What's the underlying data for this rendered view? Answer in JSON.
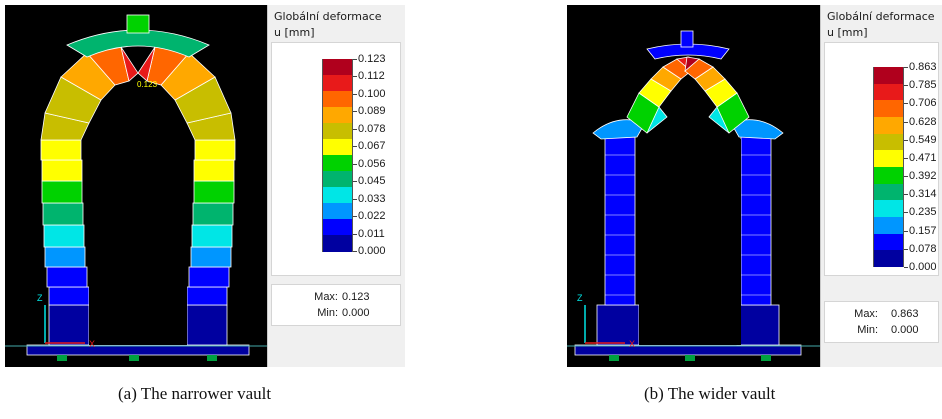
{
  "colors": {
    "legend": [
      "#b0001d",
      "#e81a1a",
      "#ff6600",
      "#ffa800",
      "#c8be00",
      "#ffff00",
      "#00d200",
      "#00b46e",
      "#00e6e6",
      "#0096ff",
      "#0000ff",
      "#0000a0"
    ],
    "viewport_bg": "#000000",
    "panel_bg": "#f0f0f0",
    "mesh": "#ffffff"
  },
  "panel_a": {
    "title": "Globální deformace",
    "unit": "u [mm]",
    "ticks": [
      "0.123",
      "0.112",
      "0.100",
      "0.089",
      "0.078",
      "0.067",
      "0.056",
      "0.045",
      "0.033",
      "0.022",
      "0.011",
      "0.000"
    ],
    "max_label": "Max:",
    "max_value": "0.123",
    "min_label": "Min:",
    "min_value": "0.000",
    "peak_label": "0.123"
  },
  "panel_b": {
    "title": "Globální deformace",
    "unit": "u [mm]",
    "ticks": [
      "0.863",
      "0.785",
      "0.706",
      "0.628",
      "0.549",
      "0.471",
      "0.392",
      "0.314",
      "0.235",
      "0.157",
      "0.078",
      "0.000"
    ],
    "max_label": "Max:",
    "max_value": "0.863",
    "min_label": "Min:",
    "min_value": "0.000"
  },
  "axes": {
    "z": "Z",
    "x": "X"
  },
  "captions": {
    "a": "(a)  The narrower vault",
    "b": "(b)  The wider vault"
  }
}
